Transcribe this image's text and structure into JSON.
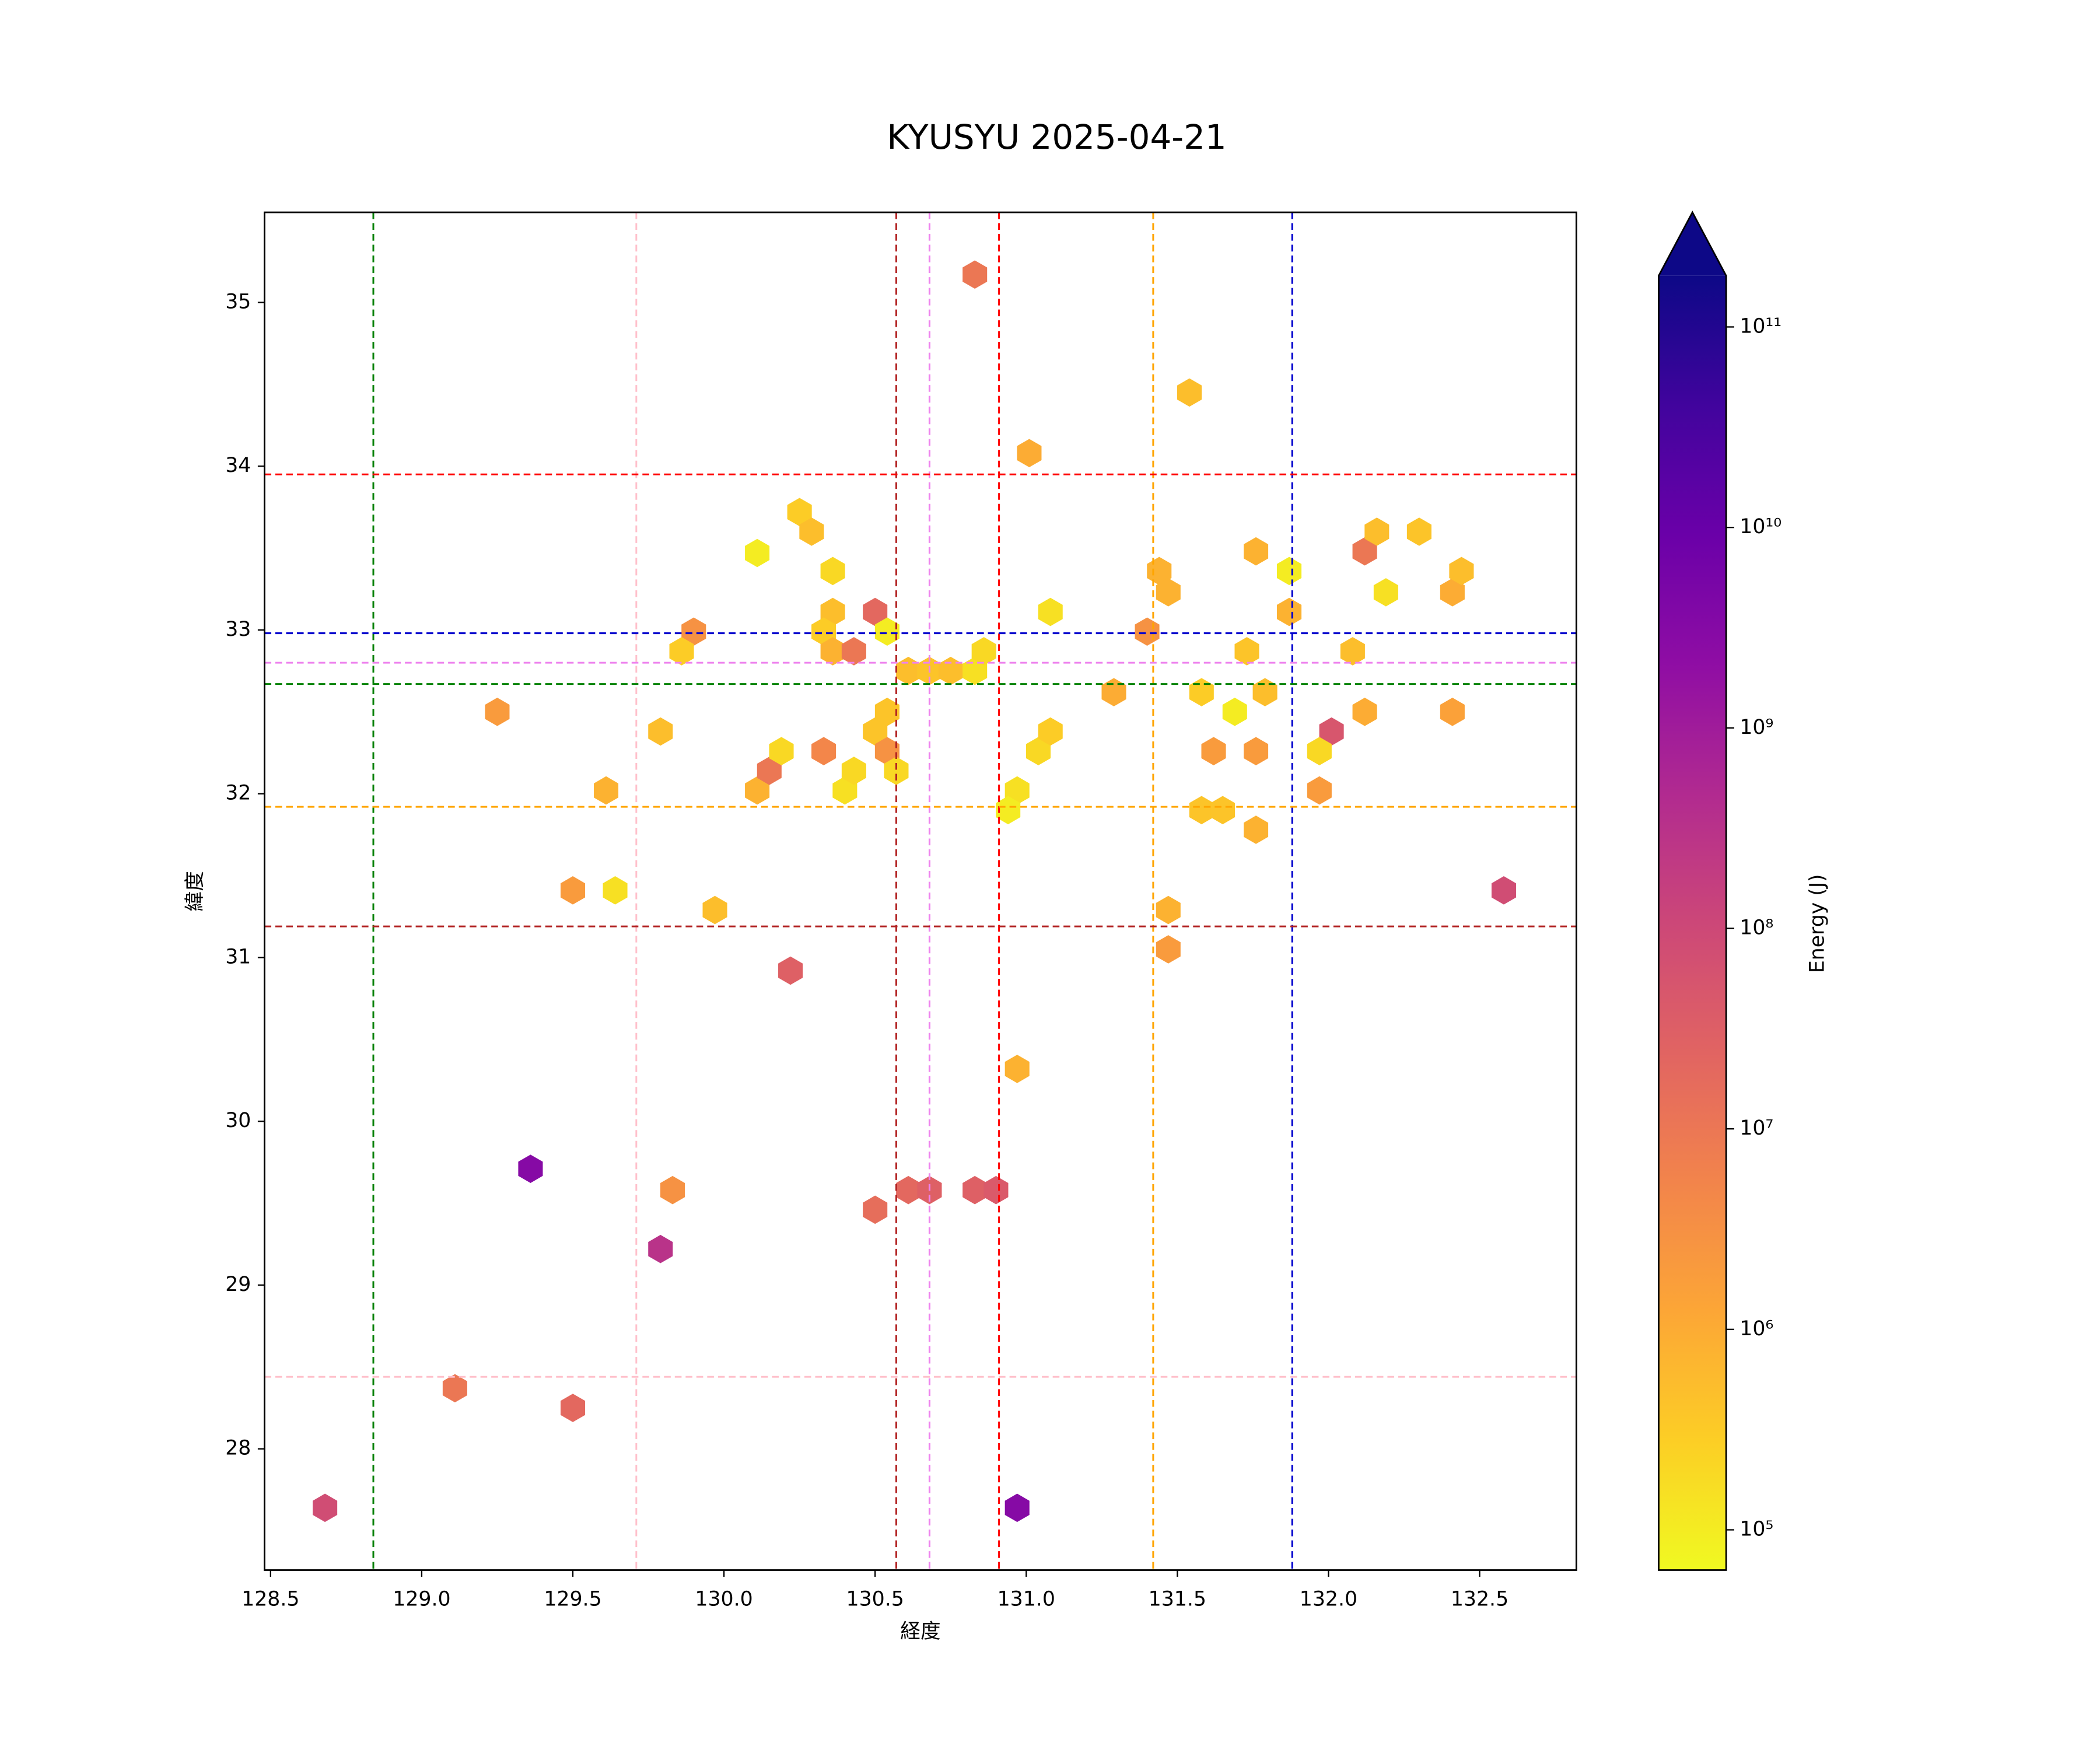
{
  "chart_data": {
    "type": "hexbin",
    "title": "KYUSYU 2025-04-21",
    "x_label": "経度",
    "y_label": "緯度",
    "colorbar_label": "Energy (J)",
    "colormap": "plasma_r",
    "color_scale": "log",
    "clim": [
      63000,
      180000000000
    ],
    "colorbar_ticks": [
      {
        "value": 100000,
        "label": "10⁵"
      },
      {
        "value": 1000000,
        "label": "10⁶"
      },
      {
        "value": 10000000,
        "label": "10⁷"
      },
      {
        "value": 100000000,
        "label": "10⁸"
      },
      {
        "value": 1000000000,
        "label": "10⁹"
      },
      {
        "value": 10000000000,
        "label": "10¹⁰"
      },
      {
        "value": 100000000000,
        "label": "10¹¹"
      }
    ],
    "colorbar_extend": "max",
    "xlim": [
      128.48,
      132.82
    ],
    "ylim": [
      27.26,
      35.55
    ],
    "xticks": [
      128.5,
      {
        "value": 129,
        "label": "129.0"
      },
      129.5,
      {
        "value": 130,
        "label": "130.0"
      },
      130.5,
      {
        "value": 131,
        "label": "131.0"
      },
      131.5,
      {
        "value": 132,
        "label": "132.0"
      },
      132.5
    ],
    "yticks": [
      28,
      29,
      30,
      31,
      32,
      33,
      34,
      35
    ],
    "x": [
      130.83,
      131.54,
      131.01,
      130.25,
      130.29,
      130.11,
      130.36,
      130.36,
      130.5,
      130.33,
      130.54,
      129.9,
      129.86,
      130.36,
      130.43,
      130.61,
      130.68,
      130.75,
      130.83,
      130.86,
      131.08,
      131.29,
      131.4,
      131.44,
      131.47,
      131.76,
      131.87,
      131.87,
      131.73,
      131.58,
      131.69,
      131.79,
      131.62,
      131.76,
      131.58,
      131.65,
      131.76,
      131.47,
      131.47,
      132.12,
      132.16,
      132.3,
      132.19,
      132.41,
      132.44,
      132.08,
      132.12,
      132.41,
      132.01,
      131.97,
      131.97,
      132.58,
      129.25,
      129.79,
      129.61,
      130.11,
      130.15,
      130.19,
      130.33,
      130.4,
      130.43,
      130.5,
      130.54,
      130.54,
      130.57,
      131.04,
      131.08,
      130.97,
      130.94,
      129.5,
      129.64,
      129.97,
      130.22,
      130.97,
      129.36,
      129.83,
      129.79,
      130.5,
      130.61,
      130.68,
      130.83,
      130.9,
      129.11,
      129.5,
      128.68,
      130.97
    ],
    "y": [
      35.17,
      34.45,
      34.08,
      33.72,
      33.6,
      33.47,
      33.36,
      33.11,
      33.11,
      32.99,
      32.99,
      32.99,
      32.87,
      32.87,
      32.87,
      32.75,
      32.75,
      32.75,
      32.75,
      32.87,
      33.11,
      32.62,
      32.99,
      33.36,
      33.23,
      33.48,
      33.36,
      33.11,
      32.87,
      32.62,
      32.5,
      32.62,
      32.26,
      32.26,
      31.9,
      31.9,
      31.78,
      31.29,
      31.05,
      33.48,
      33.6,
      33.6,
      33.23,
      33.23,
      33.36,
      32.87,
      32.5,
      32.5,
      32.38,
      32.26,
      32.02,
      31.41,
      32.5,
      32.38,
      32.02,
      32.02,
      32.14,
      32.26,
      32.26,
      32.02,
      32.14,
      32.38,
      32.5,
      32.26,
      32.14,
      32.26,
      32.38,
      32.02,
      31.9,
      31.41,
      31.41,
      31.29,
      30.92,
      30.32,
      29.71,
      29.58,
      29.22,
      29.46,
      29.58,
      29.58,
      29.58,
      29.58,
      28.37,
      28.25,
      27.64,
      27.64
    ],
    "values": [
      10000000,
      500000,
      1000000,
      300000,
      500000,
      100000,
      200000,
      500000,
      20000000,
      300000,
      100000,
      3000000,
      300000,
      800000,
      10000000,
      500000,
      400000,
      500000,
      150000,
      200000,
      150000,
      1000000,
      3000000,
      800000,
      800000,
      800000,
      100000,
      800000,
      400000,
      300000,
      100000,
      500000,
      2000000,
      2000000,
      400000,
      400000,
      800000,
      800000,
      2000000,
      10000000,
      500000,
      400000,
      150000,
      1000000,
      500000,
      500000,
      1000000,
      1500000,
      50000000,
      200000,
      2000000,
      80000000,
      2000000,
      500000,
      800000,
      800000,
      10000000,
      200000,
      5000000,
      150000,
      200000,
      400000,
      400000,
      3000000,
      200000,
      200000,
      300000,
      150000,
      100000,
      2000000,
      150000,
      500000,
      30000000,
      800000,
      3000000000,
      3000000,
      300000000,
      15000000,
      20000000,
      30000000,
      30000000,
      40000000,
      10000000,
      20000000,
      80000000,
      3000000000
    ],
    "vlines": [
      {
        "x": 128.84,
        "color": "#008000"
      },
      {
        "x": 129.71,
        "color": "#ffc0cb"
      },
      {
        "x": 130.57,
        "color": "#b22222"
      },
      {
        "x": 130.68,
        "color": "#ee82ee"
      },
      {
        "x": 130.91,
        "color": "#ff0000"
      },
      {
        "x": 131.42,
        "color": "#ffa500"
      },
      {
        "x": 131.88,
        "color": "#0000cd"
      }
    ],
    "hlines": [
      {
        "y": 33.95,
        "color": "#ff0000"
      },
      {
        "y": 32.98,
        "color": "#0000cd"
      },
      {
        "y": 32.8,
        "color": "#ee82ee"
      },
      {
        "y": 32.67,
        "color": "#008000"
      },
      {
        "y": 31.92,
        "color": "#ffa500"
      },
      {
        "y": 31.19,
        "color": "#b22222"
      },
      {
        "y": 28.44,
        "color": "#ffc0cb"
      }
    ]
  }
}
